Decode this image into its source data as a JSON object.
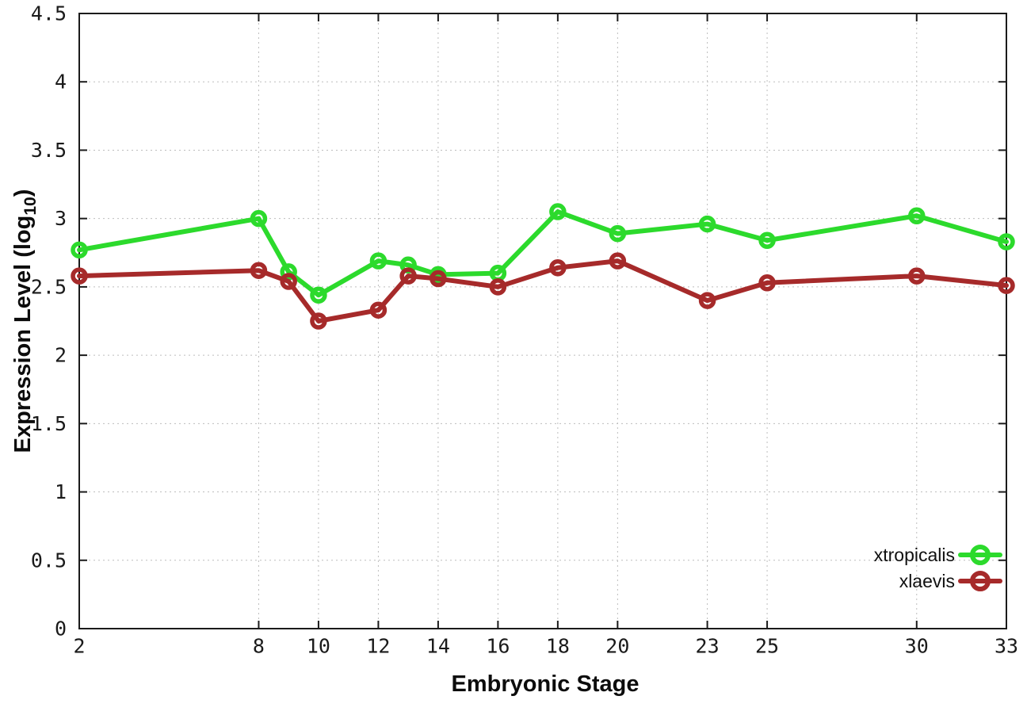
{
  "chart_data": {
    "type": "line",
    "title": "",
    "xlabel": "Embryonic Stage",
    "ylabel": "Expression Level (log10)",
    "ylabel_parts": {
      "pre": "Expression Level (log",
      "sub": "10",
      "post": ")"
    },
    "x": [
      2,
      8,
      9,
      10,
      12,
      13,
      14,
      16,
      18,
      20,
      23,
      25,
      30,
      33
    ],
    "xticks": [
      2,
      8,
      10,
      12,
      14,
      16,
      18,
      20,
      23,
      25,
      30,
      33
    ],
    "yticks": [
      0,
      0.5,
      1,
      1.5,
      2,
      2.5,
      3,
      3.5,
      4,
      4.5
    ],
    "xlim": [
      2,
      33
    ],
    "ylim": [
      0,
      4.5
    ],
    "grid": true,
    "legend_position": "bottom-right",
    "series": [
      {
        "name": "xtropicalis",
        "color": "#2cda2c",
        "values": [
          2.77,
          3.0,
          2.61,
          2.44,
          2.69,
          2.66,
          2.59,
          2.6,
          3.05,
          2.89,
          2.96,
          2.84,
          3.02,
          2.83
        ]
      },
      {
        "name": "xlaevis",
        "color": "#a62a2a",
        "values": [
          2.58,
          2.62,
          2.54,
          2.25,
          2.33,
          2.58,
          2.56,
          2.5,
          2.64,
          2.69,
          2.4,
          2.53,
          2.58,
          2.51
        ]
      }
    ]
  }
}
